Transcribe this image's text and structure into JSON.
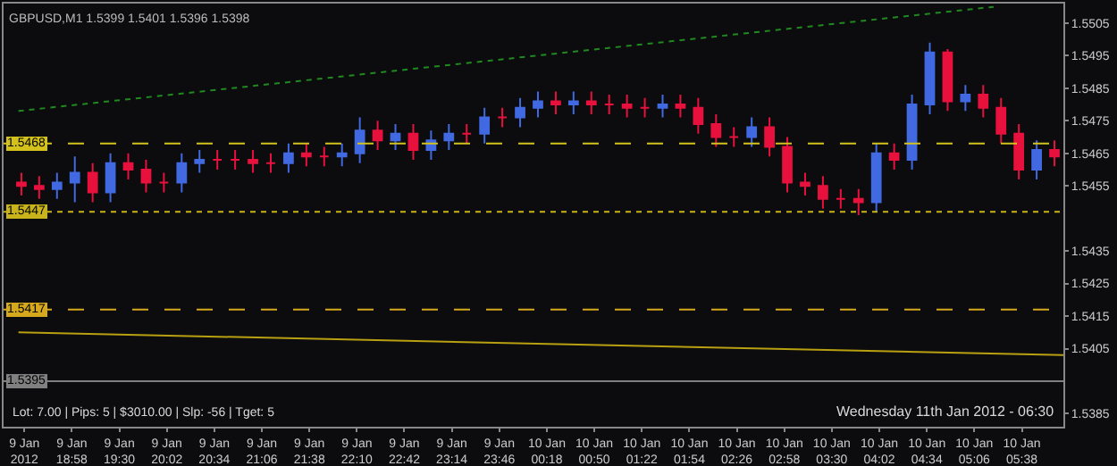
{
  "chart_data": {
    "type": "candlestick",
    "title": "GBPUSD,M1 1.5399 1.5401 1.5396 1.5398",
    "x": [
      "2012-01-09T18:24",
      "2012-01-09T18:36",
      "2012-01-09T18:48",
      "2012-01-09T19:00",
      "2012-01-09T19:12",
      "2012-01-09T19:24",
      "2012-01-09T19:36",
      "2012-01-09T19:48",
      "2012-01-09T20:00",
      "2012-01-09T20:12",
      "2012-01-09T20:24",
      "2012-01-09T20:36",
      "2012-01-09T20:48",
      "2012-01-09T21:00",
      "2012-01-09T21:12",
      "2012-01-09T21:24",
      "2012-01-09T21:36",
      "2012-01-09T21:48",
      "2012-01-09T22:00",
      "2012-01-09T22:12",
      "2012-01-09T22:24",
      "2012-01-09T22:36",
      "2012-01-09T22:48",
      "2012-01-09T23:00",
      "2012-01-09T23:12",
      "2012-01-09T23:24",
      "2012-01-09T23:36",
      "2012-01-09T23:48",
      "2012-01-10T00:00",
      "2012-01-10T00:12",
      "2012-01-10T00:24",
      "2012-01-10T00:36",
      "2012-01-10T00:48",
      "2012-01-10T01:00",
      "2012-01-10T01:12",
      "2012-01-10T01:24",
      "2012-01-10T01:36",
      "2012-01-10T01:48",
      "2012-01-10T02:00",
      "2012-01-10T02:12",
      "2012-01-10T02:24",
      "2012-01-10T02:36",
      "2012-01-10T02:48",
      "2012-01-10T03:00",
      "2012-01-10T03:12",
      "2012-01-10T03:24",
      "2012-01-10T03:36",
      "2012-01-10T03:48",
      "2012-01-10T04:00",
      "2012-01-10T04:12",
      "2012-01-10T04:24",
      "2012-01-10T04:36",
      "2012-01-10T04:48",
      "2012-01-10T05:00",
      "2012-01-10T05:12",
      "2012-01-10T05:24",
      "2012-01-10T05:36",
      "2012-01-10T05:48",
      "2012-01-10T06:00"
    ],
    "ohlc": [
      [
        1.5456,
        1.5459,
        1.5452,
        1.5455
      ],
      [
        1.5455,
        1.5458,
        1.5451,
        1.5454
      ],
      [
        1.5454,
        1.5459,
        1.5451,
        1.5456
      ],
      [
        1.5456,
        1.5464,
        1.545,
        1.5459
      ],
      [
        1.5459,
        1.5462,
        1.545,
        1.5453
      ],
      [
        1.5453,
        1.5465,
        1.545,
        1.5462
      ],
      [
        1.5462,
        1.5465,
        1.5457,
        1.546
      ],
      [
        1.546,
        1.5463,
        1.5453,
        1.5456
      ],
      [
        1.5456,
        1.5459,
        1.5453,
        1.5456
      ],
      [
        1.5456,
        1.5465,
        1.5453,
        1.5462
      ],
      [
        1.5462,
        1.5466,
        1.5459,
        1.5463
      ],
      [
        1.5463,
        1.5466,
        1.546,
        1.5463
      ],
      [
        1.5463,
        1.5466,
        1.546,
        1.5463
      ],
      [
        1.5463,
        1.5466,
        1.5459,
        1.5462
      ],
      [
        1.5462,
        1.5465,
        1.5459,
        1.5462
      ],
      [
        1.5462,
        1.5468,
        1.5459,
        1.5465
      ],
      [
        1.5465,
        1.5468,
        1.5461,
        1.5464
      ],
      [
        1.5464,
        1.5467,
        1.5461,
        1.5464
      ],
      [
        1.5464,
        1.5468,
        1.5461,
        1.5465
      ],
      [
        1.5465,
        1.5476,
        1.5462,
        1.5472
      ],
      [
        1.5472,
        1.5475,
        1.5466,
        1.5469
      ],
      [
        1.5469,
        1.5474,
        1.5466,
        1.5471
      ],
      [
        1.5471,
        1.5474,
        1.5463,
        1.5466
      ],
      [
        1.5466,
        1.5472,
        1.5463,
        1.5469
      ],
      [
        1.5469,
        1.5474,
        1.5466,
        1.5471
      ],
      [
        1.5471,
        1.5474,
        1.5468,
        1.5471
      ],
      [
        1.5471,
        1.5479,
        1.5468,
        1.5476
      ],
      [
        1.5476,
        1.5479,
        1.5473,
        1.5476
      ],
      [
        1.5476,
        1.5482,
        1.5473,
        1.5479
      ],
      [
        1.5479,
        1.5484,
        1.5476,
        1.5481
      ],
      [
        1.5481,
        1.5484,
        1.5477,
        1.548
      ],
      [
        1.548,
        1.5484,
        1.5477,
        1.5481
      ],
      [
        1.5481,
        1.5484,
        1.5477,
        1.548
      ],
      [
        1.548,
        1.5483,
        1.5477,
        1.548
      ],
      [
        1.548,
        1.5483,
        1.5476,
        1.5479
      ],
      [
        1.5479,
        1.5482,
        1.5476,
        1.5479
      ],
      [
        1.5479,
        1.5483,
        1.5476,
        1.548
      ],
      [
        1.548,
        1.5483,
        1.5476,
        1.5479
      ],
      [
        1.5479,
        1.5482,
        1.5471,
        1.5474
      ],
      [
        1.5474,
        1.5477,
        1.5467,
        1.547
      ],
      [
        1.547,
        1.5473,
        1.5467,
        1.547
      ],
      [
        1.547,
        1.5476,
        1.5467,
        1.5473
      ],
      [
        1.5473,
        1.5476,
        1.5464,
        1.5467
      ],
      [
        1.5467,
        1.547,
        1.5453,
        1.5456
      ],
      [
        1.5456,
        1.5459,
        1.5452,
        1.5455
      ],
      [
        1.5455,
        1.5458,
        1.5448,
        1.5451
      ],
      [
        1.5451,
        1.5454,
        1.5448,
        1.5451
      ],
      [
        1.5451,
        1.5454,
        1.5446,
        1.545
      ],
      [
        1.545,
        1.5468,
        1.5447,
        1.5465
      ],
      [
        1.5465,
        1.5468,
        1.546,
        1.5463
      ],
      [
        1.5463,
        1.5483,
        1.546,
        1.548
      ],
      [
        1.548,
        1.5499,
        1.5477,
        1.5496
      ],
      [
        1.5496,
        1.5497,
        1.5478,
        1.5481
      ],
      [
        1.5481,
        1.5486,
        1.5478,
        1.5483
      ],
      [
        1.5483,
        1.5486,
        1.5476,
        1.5479
      ],
      [
        1.5479,
        1.5482,
        1.5468,
        1.5471
      ],
      [
        1.5471,
        1.5474,
        1.5457,
        1.546
      ],
      [
        1.546,
        1.5469,
        1.5457,
        1.5466
      ],
      [
        1.5466,
        1.5469,
        1.5461,
        1.5464
      ]
    ],
    "colors": [
      "#e8103c",
      "#e8103c",
      "#4169e1",
      "#4169e1",
      "#e8103c",
      "#4169e1",
      "#e8103c",
      "#e8103c",
      "#e8103c",
      "#4169e1",
      "#4169e1",
      "#e8103c",
      "#e8103c",
      "#e8103c",
      "#e8103c",
      "#4169e1",
      "#e8103c",
      "#e8103c",
      "#4169e1",
      "#4169e1",
      "#e8103c",
      "#4169e1",
      "#e8103c",
      "#4169e1",
      "#4169e1",
      "#e8103c",
      "#4169e1",
      "#e8103c",
      "#4169e1",
      "#4169e1",
      "#e8103c",
      "#4169e1",
      "#e8103c",
      "#e8103c",
      "#e8103c",
      "#e8103c",
      "#4169e1",
      "#e8103c",
      "#e8103c",
      "#e8103c",
      "#e8103c",
      "#4169e1",
      "#e8103c",
      "#e8103c",
      "#e8103c",
      "#e8103c",
      "#e8103c",
      "#e8103c",
      "#4169e1",
      "#e8103c",
      "#4169e1",
      "#4169e1",
      "#e8103c",
      "#4169e1",
      "#e8103c",
      "#e8103c",
      "#e8103c",
      "#4169e1",
      "#e8103c"
    ],
    "series": [
      {
        "type": "line",
        "color": "#1f8a1f",
        "line_style": "dotted",
        "x": [
          "2012-01-09T18:22",
          "2012-01-10T05:19"
        ],
        "values": [
          1.5478,
          1.551
        ]
      },
      {
        "type": "line",
        "color": "#b8a010",
        "line_style": "solid",
        "x": [
          "2012-01-09T18:22",
          "2012-01-10T06:06"
        ],
        "values": [
          1.541,
          1.5403
        ]
      }
    ],
    "xlim": [
      "2012-01-09T18:12",
      "2012-01-10T06:06"
    ],
    "xticks": [
      {
        "value": "2012-01-09T18:26",
        "label": "9 Jan 2012"
      },
      {
        "value": "2012-01-09T18:58",
        "label": "9 Jan 18:58"
      },
      {
        "value": "2012-01-09T19:30",
        "label": "9 Jan 19:30"
      },
      {
        "value": "2012-01-09T20:02",
        "label": "9 Jan 20:02"
      },
      {
        "value": "2012-01-09T20:34",
        "label": "9 Jan 20:34"
      },
      {
        "value": "2012-01-09T21:06",
        "label": "9 Jan 21:06"
      },
      {
        "value": "2012-01-09T21:38",
        "label": "9 Jan 21:38"
      },
      {
        "value": "2012-01-09T22:10",
        "label": "9 Jan 22:10"
      },
      {
        "value": "2012-01-09T22:42",
        "label": "9 Jan 22:42"
      },
      {
        "value": "2012-01-09T23:14",
        "label": "9 Jan 23:14"
      },
      {
        "value": "2012-01-09T23:46",
        "label": "9 Jan 23:46"
      },
      {
        "value": "2012-01-10T00:18",
        "label": "10 Jan 00:18"
      },
      {
        "value": "2012-01-10T00:50",
        "label": "10 Jan 00:50"
      },
      {
        "value": "2012-01-10T01:22",
        "label": "10 Jan 01:22"
      },
      {
        "value": "2012-01-10T01:54",
        "label": "10 Jan 01:54"
      },
      {
        "value": "2012-01-10T02:26",
        "label": "10 Jan 02:26"
      },
      {
        "value": "2012-01-10T02:58",
        "label": "10 Jan 02:58"
      },
      {
        "value": "2012-01-10T03:30",
        "label": "10 Jan 03:30"
      },
      {
        "value": "2012-01-10T04:02",
        "label": "10 Jan 04:02"
      },
      {
        "value": "2012-01-10T04:34",
        "label": "10 Jan 04:34"
      },
      {
        "value": "2012-01-10T05:06",
        "label": "10 Jan 05:06"
      },
      {
        "value": "2012-01-10T05:38",
        "label": "10 Jan 05:38"
      }
    ],
    "ylim": [
      1.5381,
      1.5511
    ],
    "yticks": [
      {
        "value": 1.5505,
        "label": "1.5505"
      },
      {
        "value": 1.5495,
        "label": "1.5495"
      },
      {
        "value": 1.5485,
        "label": "1.5485"
      },
      {
        "value": 1.5475,
        "label": "1.5475"
      },
      {
        "value": 1.5465,
        "label": "1.5465"
      },
      {
        "value": 1.5455,
        "label": "1.5455"
      },
      {
        "value": 1.5435,
        "label": "1.5435"
      },
      {
        "value": 1.5425,
        "label": "1.5425"
      },
      {
        "value": 1.5415,
        "label": "1.5415"
      },
      {
        "value": 1.5405,
        "label": "1.5405"
      },
      {
        "value": 1.5385,
        "label": "1.5385"
      }
    ],
    "ref_lines": [
      {
        "axis": "y",
        "value": 1.5468,
        "label": "1.5468",
        "color": "#d4c21c",
        "line_style": "dashed"
      },
      {
        "axis": "y",
        "value": 1.5447,
        "label": "1.5447",
        "color": "#c8b41a",
        "line_style": "dotted"
      },
      {
        "axis": "y",
        "value": 1.5417,
        "label": "1.5417",
        "color": "#d6a81c",
        "line_style": "dashed"
      },
      {
        "axis": "y",
        "value": 1.5395,
        "label": "1.5395",
        "color": "#808080",
        "line_style": "solid"
      }
    ],
    "annotations": [
      "Lot: 7.00 | Pips: 5 | $3010.00 | Slp: -56 | Tget: 5",
      "Wednesday 11th Jan 2012 - 06:30"
    ],
    "grid": false
  }
}
